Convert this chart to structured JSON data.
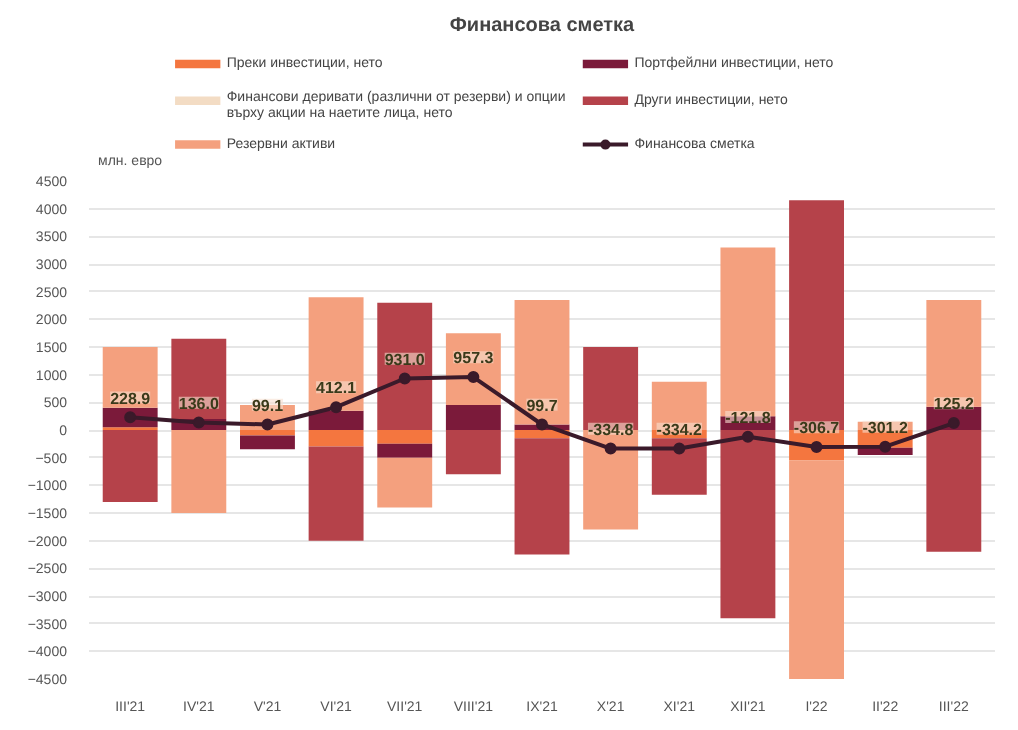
{
  "chart_data": {
    "type": "bar",
    "stacked": true,
    "title": "Финансова сметка",
    "ylabel": "млн. евро",
    "categories": [
      "III'21",
      "IV'21",
      "V'21",
      "VI'21",
      "VII'21",
      "VIII'21",
      "IX'21",
      "X'21",
      "XI'21",
      "XII'21",
      "I'22",
      "II'22",
      "III'22"
    ],
    "ylim": [
      -4500,
      4500
    ],
    "yticks": [
      -4500,
      -4000,
      -3500,
      -3000,
      -2500,
      -2000,
      -1500,
      -1000,
      -500,
      0,
      500,
      1000,
      1500,
      2000,
      2500,
      3000,
      3500,
      4000,
      4500
    ],
    "grid": "y",
    "legend": "top",
    "series": [
      {
        "name": "Преки инвестиции, нето",
        "color": "#f4763f",
        "values": [
          50,
          0,
          -100,
          -300,
          -250,
          0,
          -150,
          null,
          -150,
          0,
          -550,
          -320,
          0
        ]
      },
      {
        "name": "Портфейлни инвестиции, нето",
        "color": "#7b1a3a",
        "values": [
          350,
          200,
          -250,
          350,
          -250,
          450,
          100,
          0,
          0,
          250,
          0,
          -130,
          420
        ]
      },
      {
        "name": "Финансови деривати (различни от резерви) и опции върху акции на наетите лица, нето",
        "color": "#f3dcc4",
        "values": [
          0,
          0,
          0,
          0,
          0,
          0,
          0,
          0,
          0,
          0,
          0,
          0,
          0
        ]
      },
      {
        "name": "Други инвестиции, нето",
        "color": "#b5424a",
        "values": [
          -1300,
          1450,
          0,
          -1700,
          2300,
          -800,
          -2100,
          1500,
          -1020,
          -3400,
          4150,
          0,
          -2200
        ]
      },
      {
        "name": "Резервни активи",
        "color": "#f4a07e",
        "values": [
          1100,
          -1500,
          450,
          2050,
          -900,
          1300,
          2250,
          -1800,
          870,
          3050,
          -3950,
          150,
          1930
        ]
      },
      {
        "name": "Финансова сметка",
        "type": "line",
        "color": "#3a1a2a",
        "marker": "circle",
        "values": [
          228.9,
          136.0,
          99.1,
          412.1,
          931.0,
          957.3,
          99.7,
          -334.8,
          -334.2,
          -121.8,
          -306.7,
          -301.2,
          125.2
        ],
        "value_labels": [
          "228.9",
          "136.0",
          "99.1",
          "412.1",
          "931.0",
          "957.3",
          "99.7",
          "-334.8",
          "-334.2",
          "-121.8",
          "-306.7",
          "-301.2",
          "125.2"
        ]
      }
    ]
  }
}
